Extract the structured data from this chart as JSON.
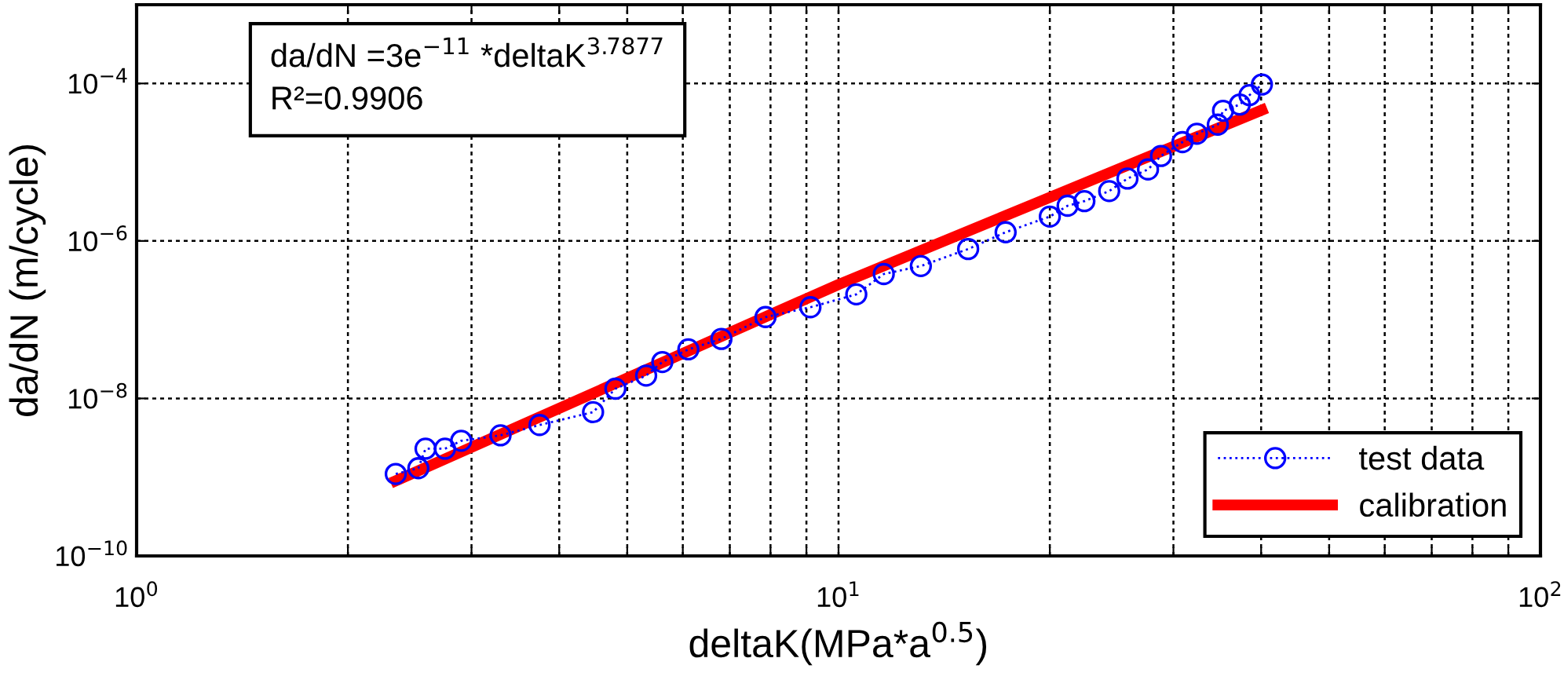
{
  "chart_data": {
    "type": "line",
    "xlabel": "deltaK(MPa*a$^{0.5}$)",
    "ylabel": "da/dN (m/cycle)",
    "annotations": [
      "da/dN =3e$^{−11}$ *deltaK$^{3.7877}$",
      "R²=0.9906"
    ],
    "log": "xy",
    "grid": true,
    "legend": "bottom right",
    "xlim": [
      1,
      100
    ],
    "ylim": [
      1e-10,
      0.001
    ],
    "xticks": [
      {
        "value": 1,
        "label": "10$^{0}$"
      },
      {
        "value": 2,
        "label": null
      },
      {
        "value": 3,
        "label": null
      },
      {
        "value": 4,
        "label": null
      },
      {
        "value": 5,
        "label": null
      },
      {
        "value": 6,
        "label": null
      },
      {
        "value": 7,
        "label": null
      },
      {
        "value": 8,
        "label": null
      },
      {
        "value": 9,
        "label": null
      },
      {
        "value": 10,
        "label": "10$^{1}$"
      },
      {
        "value": 20,
        "label": null
      },
      {
        "value": 30,
        "label": null
      },
      {
        "value": 40,
        "label": null
      },
      {
        "value": 50,
        "label": null
      },
      {
        "value": 60,
        "label": null
      },
      {
        "value": 70,
        "label": null
      },
      {
        "value": 80,
        "label": null
      },
      {
        "value": 90,
        "label": null
      },
      {
        "value": 100,
        "label": "10$^{2}$"
      }
    ],
    "yticks": [
      {
        "value": 1e-10,
        "label": "10$^{−10}$"
      },
      {
        "value": 1e-08,
        "label": "10$^{−8}$"
      },
      {
        "value": 1e-06,
        "label": "10$^{−6}$"
      },
      {
        "value": 0.0001,
        "label": "10$^{−4}$"
      }
    ],
    "series": [
      {
        "name": "test data",
        "color": "#0000ff",
        "marker": "circle",
        "line_style": "dotted",
        "x": [
          2.34,
          2.52,
          2.58,
          2.75,
          2.9,
          3.3,
          3.75,
          4.47,
          4.81,
          5.32,
          5.61,
          6.11,
          6.81,
          7.87,
          9.12,
          10.6,
          11.6,
          13.1,
          15.3,
          17.3,
          20.0,
          21.2,
          22.4,
          24.3,
          25.8,
          27.6,
          28.8,
          30.9,
          32.4,
          34.7,
          35.3,
          37.3,
          38.5,
          40.1
        ],
        "values": [
          1.1e-09,
          1.3e-09,
          2.3e-09,
          2.3e-09,
          2.9e-09,
          3.4e-09,
          4.6e-09,
          6.7e-09,
          1.33e-08,
          1.95e-08,
          2.9e-08,
          4.2e-08,
          5.7e-08,
          1.08e-07,
          1.44e-07,
          2.1e-07,
          3.8e-07,
          4.8e-07,
          7.9e-07,
          1.29e-06,
          2.04e-06,
          2.8e-06,
          3.2e-06,
          4.3e-06,
          6.2e-06,
          8.1e-06,
          1.2e-05,
          1.8e-05,
          2.3e-05,
          3e-05,
          4.5e-05,
          5.4e-05,
          7.1e-05,
          9.7e-05
        ]
      },
      {
        "name": "calibration",
        "color": "#ff0000",
        "marker": "none",
        "line_style": "solid",
        "x": [
          2.34,
          10,
          40.1
        ],
        "values": [
          9e-10,
          2.8e-07,
          4.6e-05
        ]
      }
    ]
  }
}
